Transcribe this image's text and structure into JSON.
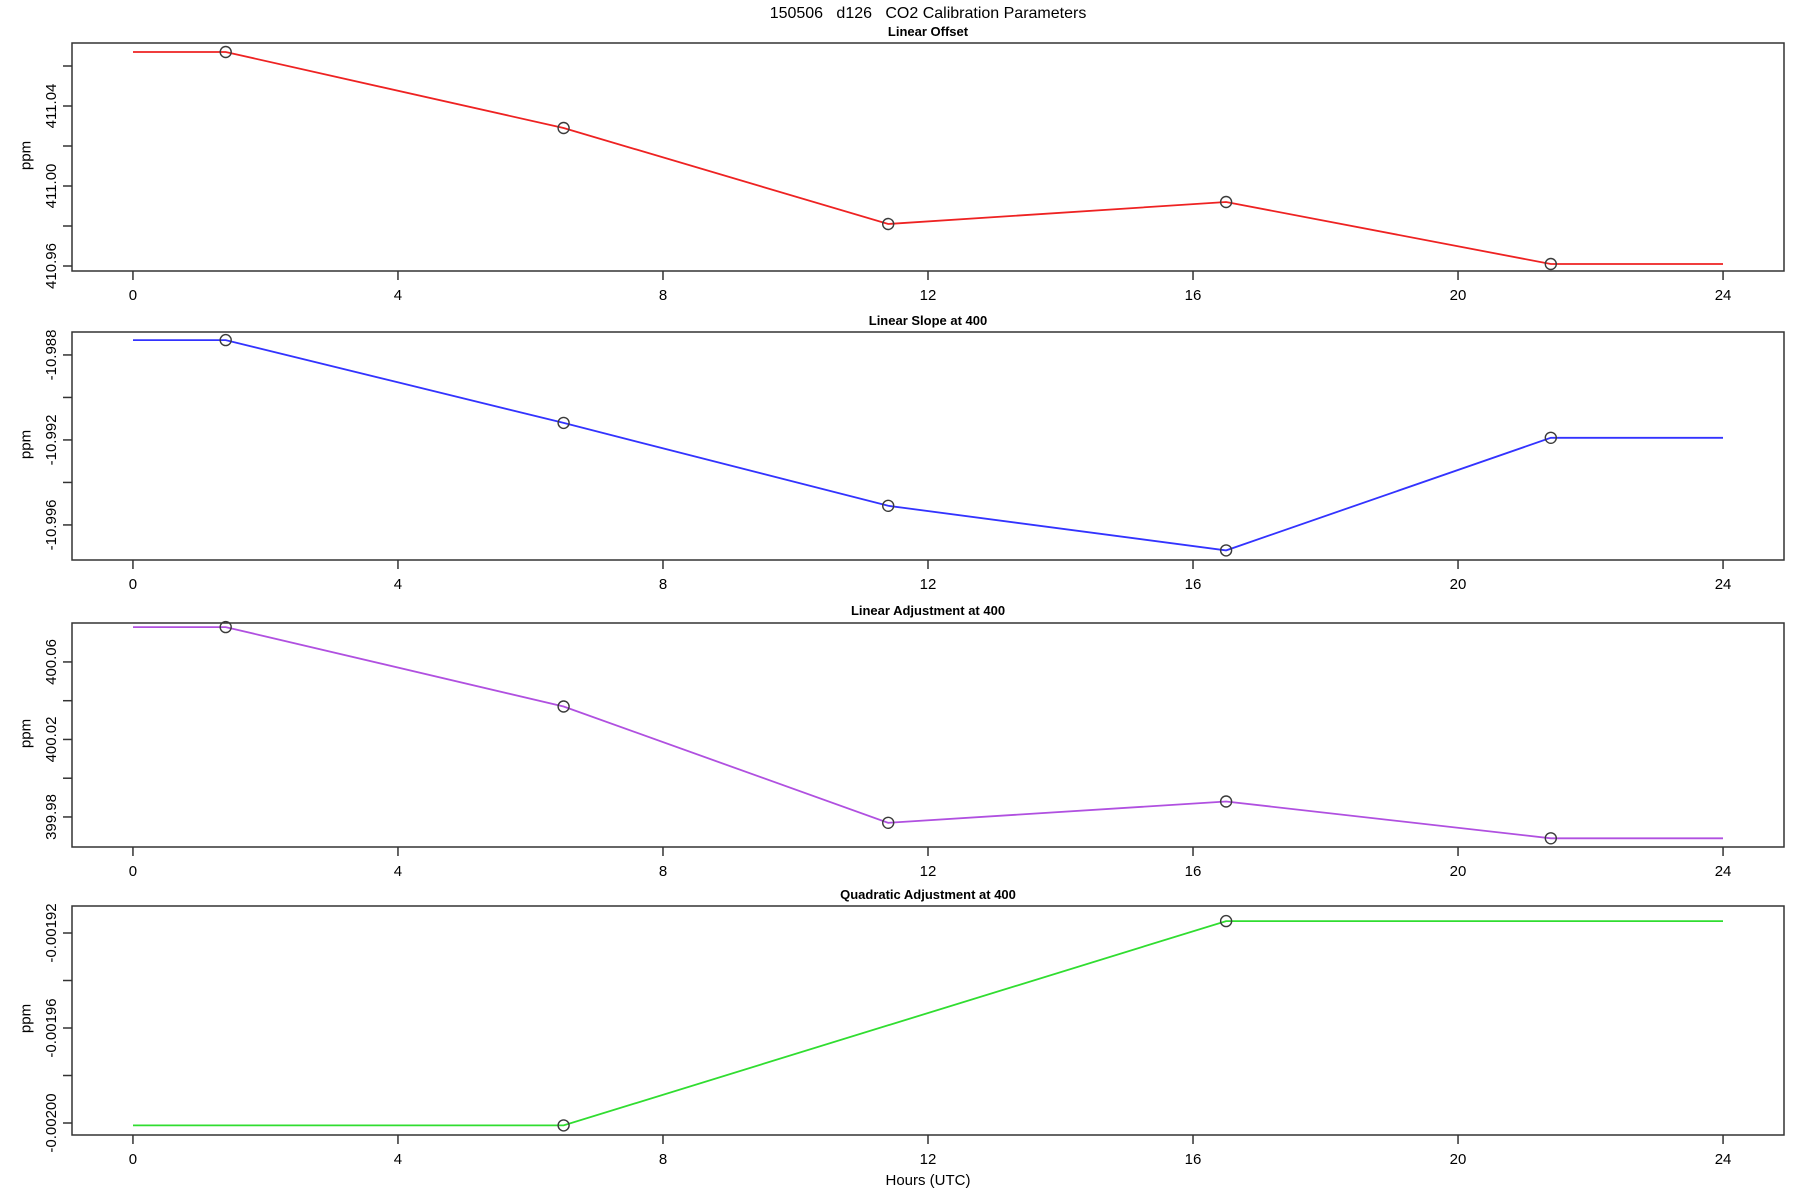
{
  "chart_data": {
    "type": "line",
    "title": "150506   d126   CO2 Calibration Parameters",
    "xlabel": "Hours (UTC)",
    "marker": "open-circle",
    "marker_color": "#3a3a3a",
    "frame_color": "#333333",
    "x_ticks": [
      0,
      4,
      8,
      12,
      16,
      20,
      24
    ],
    "xlim": [
      -0.92,
      24.92
    ],
    "calibration_hours": [
      1.4,
      6.5,
      11.4,
      16.5,
      21.4
    ],
    "panels": [
      {
        "title": "Linear Offset",
        "ylabel": "ppm",
        "color": "#ee2222",
        "ylim": [
          410.9575,
          411.0715
        ],
        "yticks": [
          {
            "v": 411.06,
            "label": ""
          },
          {
            "v": 411.04,
            "label": "411.04"
          },
          {
            "v": 411.02,
            "label": ""
          },
          {
            "v": 411.0,
            "label": "411.00"
          },
          {
            "v": 410.98,
            "label": ""
          },
          {
            "v": 410.96,
            "label": "410.96"
          }
        ],
        "points": {
          "x": [
            1.4,
            6.5,
            11.4,
            16.5,
            21.4
          ],
          "y": [
            411.067,
            411.029,
            410.981,
            410.992,
            410.961
          ]
        },
        "line": [
          [
            0,
            411.067
          ],
          [
            1.4,
            411.067
          ],
          [
            6.5,
            411.029
          ],
          [
            11.4,
            410.981
          ],
          [
            16.5,
            410.992
          ],
          [
            21.4,
            410.961
          ],
          [
            24,
            410.961
          ]
        ]
      },
      {
        "title": "Linear Slope at 400",
        "ylabel": "ppm",
        "color": "#3333ff",
        "ylim": [
          -10.99765,
          -10.98692
        ],
        "yticks": [
          {
            "v": -10.988,
            "label": "-10.988"
          },
          {
            "v": -10.99,
            "label": ""
          },
          {
            "v": -10.992,
            "label": "-10.992"
          },
          {
            "v": -10.994,
            "label": ""
          },
          {
            "v": -10.996,
            "label": "-10.996"
          }
        ],
        "points": {
          "x": [
            1.4,
            6.5,
            11.4,
            16.5,
            21.4
          ],
          "y": [
            -10.9873,
            -10.9912,
            -10.9951,
            -10.9972,
            -10.9919
          ]
        },
        "line": [
          [
            0,
            -10.9873
          ],
          [
            1.4,
            -10.9873
          ],
          [
            6.5,
            -10.9912
          ],
          [
            11.4,
            -10.9951
          ],
          [
            16.5,
            -10.9972
          ],
          [
            21.4,
            -10.9919
          ],
          [
            24,
            -10.9919
          ]
        ]
      },
      {
        "title": "Linear Adjustment at 400",
        "ylabel": "ppm",
        "color": "#b050e0",
        "ylim": [
          399.9645,
          400.0801
        ],
        "yticks": [
          {
            "v": 400.06,
            "label": "400.06"
          },
          {
            "v": 400.04,
            "label": ""
          },
          {
            "v": 400.02,
            "label": "400.02"
          },
          {
            "v": 400.0,
            "label": ""
          },
          {
            "v": 399.98,
            "label": "399.98"
          }
        ],
        "points": {
          "x": [
            1.4,
            6.5,
            11.4,
            16.5,
            21.4
          ],
          "y": [
            400.078,
            400.037,
            399.977,
            399.988,
            399.969
          ]
        },
        "line": [
          [
            0,
            400.078
          ],
          [
            1.4,
            400.078
          ],
          [
            6.5,
            400.037
          ],
          [
            11.4,
            399.977
          ],
          [
            16.5,
            399.988
          ],
          [
            21.4,
            399.969
          ],
          [
            24,
            399.969
          ]
        ]
      },
      {
        "title": "Quadratic Adjustment at 400",
        "ylabel": "ppm",
        "color": "#30dd30",
        "ylim": [
          -0.00200505,
          -0.00190863
        ],
        "yticks": [
          {
            "v": -0.00192,
            "label": "-0.00192"
          },
          {
            "v": -0.00194,
            "label": ""
          },
          {
            "v": -0.00196,
            "label": "-0.00196"
          },
          {
            "v": -0.00198,
            "label": ""
          },
          {
            "v": -0.002,
            "label": "-0.00200"
          }
        ],
        "points": {
          "x": [
            6.5,
            16.5
          ],
          "y": [
            -0.002001,
            -0.001915
          ]
        },
        "line": [
          [
            0,
            -0.002001
          ],
          [
            6.5,
            -0.002001
          ],
          [
            16.5,
            -0.001915
          ],
          [
            24,
            -0.001915
          ]
        ]
      }
    ]
  }
}
